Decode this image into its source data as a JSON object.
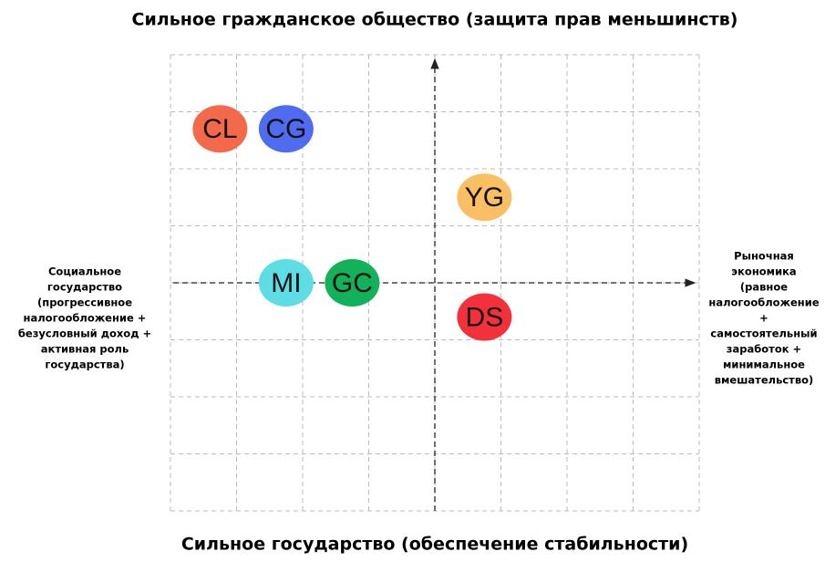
{
  "chart_data": {
    "type": "scatter",
    "title": "Сильное гражданское общество (защита прав меньшинств)",
    "bottom_label": "Сильное государство (обеспечение стабильности)",
    "left_label": [
      "Социальное",
      "государство",
      "(прогрессивное",
      "налогообложение +",
      "безусловный доход +",
      "активная роль",
      "государства)"
    ],
    "right_label": [
      "Рыночная",
      "экономика",
      "(равное",
      "налогообложение",
      "+",
      "самостоятельный",
      "заработок +",
      "минимальное",
      "вмешательство)"
    ],
    "xlim": [
      -4,
      4
    ],
    "ylim": [
      -4,
      4
    ],
    "xticks": [
      -4,
      -3,
      -2,
      -1,
      0,
      1,
      2,
      3,
      4
    ],
    "yticks": [
      -4,
      -3,
      -2,
      -1,
      0,
      1,
      2,
      3,
      4
    ],
    "grid": true,
    "points": [
      {
        "label": "CL",
        "color": "#f4694a",
        "x": -3.25,
        "y": 2.7
      },
      {
        "label": "CG",
        "color": "#4f6cf0",
        "x": -2.25,
        "y": 2.7
      },
      {
        "label": "YG",
        "color": "#fbbf63",
        "x": 0.75,
        "y": 1.5
      },
      {
        "label": "MI",
        "color": "#5fdde5",
        "x": -2.25,
        "y": 0
      },
      {
        "label": "GC",
        "color": "#13b15a",
        "x": -1.25,
        "y": 0
      },
      {
        "label": "DS",
        "color": "#f4313a",
        "x": 0.75,
        "y": -0.6
      }
    ]
  }
}
